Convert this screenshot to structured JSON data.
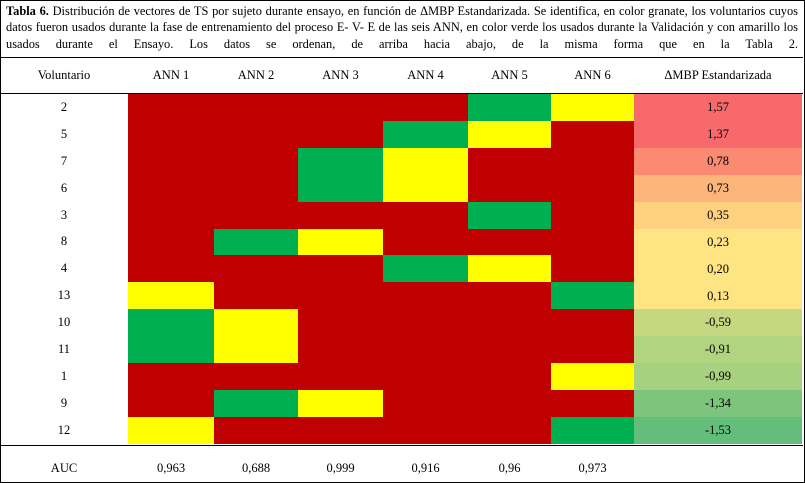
{
  "caption": {
    "label": "Tabla 6.",
    "text": "Distribución de vectores de TS por sujeto durante ensayo, en función de ΔMBP Estandarizada. Se identifica, en color granate, los voluntarios cuyos datos fueron usados durante la fase de entrenamiento del proceso E- V- E de las seis ANN, en color verde los usados durante la Validación y con amarillo los usados durante el Ensayo. Los datos se ordenan, de arriba hacia abajo, de la misma forma que en la Tabla 2."
  },
  "headers": [
    "Voluntario",
    "ANN 1",
    "ANN 2",
    "ANN 3",
    "ANN 4",
    "ANN 5",
    "ANN 6",
    "ΔMBP Estandarizada"
  ],
  "colors": {
    "T": "#c00000",
    "V": "#00b050",
    "E": "#ffff00"
  },
  "legend_codes": {
    "T": "granate",
    "V": "verde",
    "E": "amarillo"
  },
  "rows": [
    {
      "voluntario": "2",
      "ann": [
        "T",
        "T",
        "T",
        "T",
        "V",
        "E"
      ],
      "dmbp": "1,57",
      "dmbp_color": "#f8696b"
    },
    {
      "voluntario": "5",
      "ann": [
        "T",
        "T",
        "T",
        "V",
        "E",
        "T"
      ],
      "dmbp": "1,37",
      "dmbp_color": "#f8696b"
    },
    {
      "voluntario": "7",
      "ann": [
        "T",
        "T",
        "V",
        "E",
        "T",
        "T"
      ],
      "dmbp": "0,78",
      "dmbp_color": "#fa8a72"
    },
    {
      "voluntario": "6",
      "ann": [
        "T",
        "T",
        "V",
        "E",
        "T",
        "T"
      ],
      "dmbp": "0,73",
      "dmbp_color": "#fbb57b"
    },
    {
      "voluntario": "3",
      "ann": [
        "T",
        "T",
        "T",
        "T",
        "V",
        "T"
      ],
      "dmbp": "0,35",
      "dmbp_color": "#fdd17f"
    },
    {
      "voluntario": "8",
      "ann": [
        "T",
        "V",
        "E",
        "T",
        "T",
        "T"
      ],
      "dmbp": "0,23",
      "dmbp_color": "#ffe483"
    },
    {
      "voluntario": "4",
      "ann": [
        "T",
        "T",
        "T",
        "V",
        "E",
        "T"
      ],
      "dmbp": "0,20",
      "dmbp_color": "#ffe483"
    },
    {
      "voluntario": "13",
      "ann": [
        "E",
        "T",
        "T",
        "T",
        "T",
        "V"
      ],
      "dmbp": "0,13",
      "dmbp_color": "#ffe483"
    },
    {
      "voluntario": "10",
      "ann": [
        "V",
        "E",
        "T",
        "T",
        "T",
        "T"
      ],
      "dmbp": "-0,59",
      "dmbp_color": "#c5d881"
    },
    {
      "voluntario": "11",
      "ann": [
        "V",
        "E",
        "T",
        "T",
        "T",
        "T"
      ],
      "dmbp": "-0,91",
      "dmbp_color": "#b0d47f"
    },
    {
      "voluntario": "1",
      "ann": [
        "T",
        "T",
        "T",
        "T",
        "T",
        "E"
      ],
      "dmbp": "-0,99",
      "dmbp_color": "#a6d17e"
    },
    {
      "voluntario": "9",
      "ann": [
        "T",
        "V",
        "E",
        "T",
        "T",
        "T"
      ],
      "dmbp": "-1,34",
      "dmbp_color": "#7dc57c"
    },
    {
      "voluntario": "12",
      "ann": [
        "E",
        "T",
        "T",
        "T",
        "T",
        "V"
      ],
      "dmbp": "-1,53",
      "dmbp_color": "#63be7b"
    }
  ],
  "auc": {
    "label": "AUC",
    "values": [
      "0,963",
      "0,688",
      "0,999",
      "0,916",
      "0,96",
      "0,973"
    ]
  }
}
